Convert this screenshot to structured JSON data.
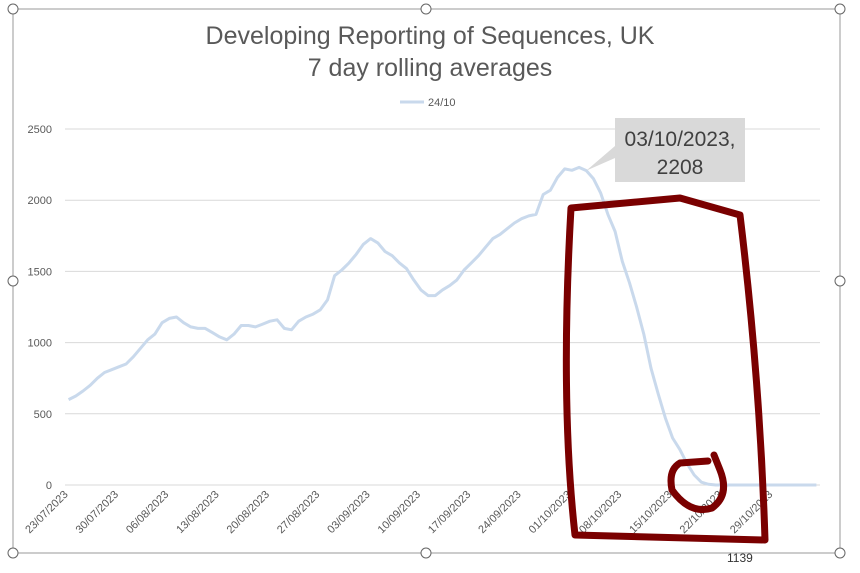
{
  "chart_data": {
    "type": "line",
    "title": "Developing Reporting of Sequences, UK",
    "subtitle": "7 day rolling averages",
    "categories": [
      "23/07/2023",
      null,
      null,
      null,
      null,
      null,
      null,
      "30/07/2023",
      null,
      null,
      null,
      null,
      null,
      null,
      "06/08/2023",
      null,
      null,
      null,
      null,
      null,
      null,
      "13/08/2023",
      null,
      null,
      null,
      null,
      null,
      null,
      "20/08/2023",
      null,
      null,
      null,
      null,
      null,
      null,
      "27/08/2023",
      null,
      null,
      null,
      null,
      null,
      null,
      "03/09/2023",
      null,
      null,
      null,
      null,
      null,
      null,
      "10/09/2023",
      null,
      null,
      null,
      null,
      null,
      null,
      "17/09/2023",
      null,
      null,
      null,
      null,
      null,
      null,
      "24/09/2023",
      null,
      null,
      null,
      null,
      null,
      null,
      "01/10/2023",
      null,
      null,
      null,
      null,
      null,
      null,
      "08/10/2023",
      null,
      null,
      null,
      null,
      null,
      null,
      "15/10/2023",
      null,
      null,
      null,
      null,
      null,
      null,
      "22/10/2023",
      null,
      null,
      null,
      null,
      null,
      null,
      "29/10/2023",
      null,
      null,
      null,
      null,
      null,
      null
    ],
    "series": [
      {
        "name": "24/10",
        "color": "#c9d9ec",
        "values": [
          600,
          625,
          660,
          700,
          750,
          790,
          810,
          830,
          850,
          900,
          960,
          1020,
          1060,
          1140,
          1170,
          1180,
          1140,
          1110,
          1100,
          1100,
          1070,
          1040,
          1020,
          1060,
          1120,
          1120,
          1110,
          1130,
          1150,
          1160,
          1100,
          1090,
          1150,
          1180,
          1200,
          1230,
          1300,
          1470,
          1510,
          1560,
          1620,
          1690,
          1730,
          1700,
          1640,
          1610,
          1560,
          1520,
          1440,
          1370,
          1330,
          1330,
          1370,
          1400,
          1440,
          1510,
          1560,
          1610,
          1670,
          1730,
          1760,
          1800,
          1840,
          1870,
          1890,
          1900,
          2040,
          2070,
          2160,
          2220,
          2210,
          2230,
          2208,
          2150,
          2050,
          1900,
          1780,
          1570,
          1420,
          1250,
          1060,
          820,
          640,
          470,
          330,
          250,
          150,
          70,
          20,
          5,
          0,
          0,
          0,
          0,
          0,
          0,
          0,
          0,
          0,
          0,
          0,
          0,
          0,
          0,
          0
        ]
      }
    ],
    "ylim": [
      0,
      2500
    ],
    "yticks": [
      0,
      500,
      1000,
      1500,
      2000,
      2500
    ],
    "grid": true,
    "legend": "top",
    "annotation": {
      "label": "03/10/2023,",
      "value": 2208
    }
  },
  "sheet": {
    "cells": [
      "1139"
    ]
  }
}
